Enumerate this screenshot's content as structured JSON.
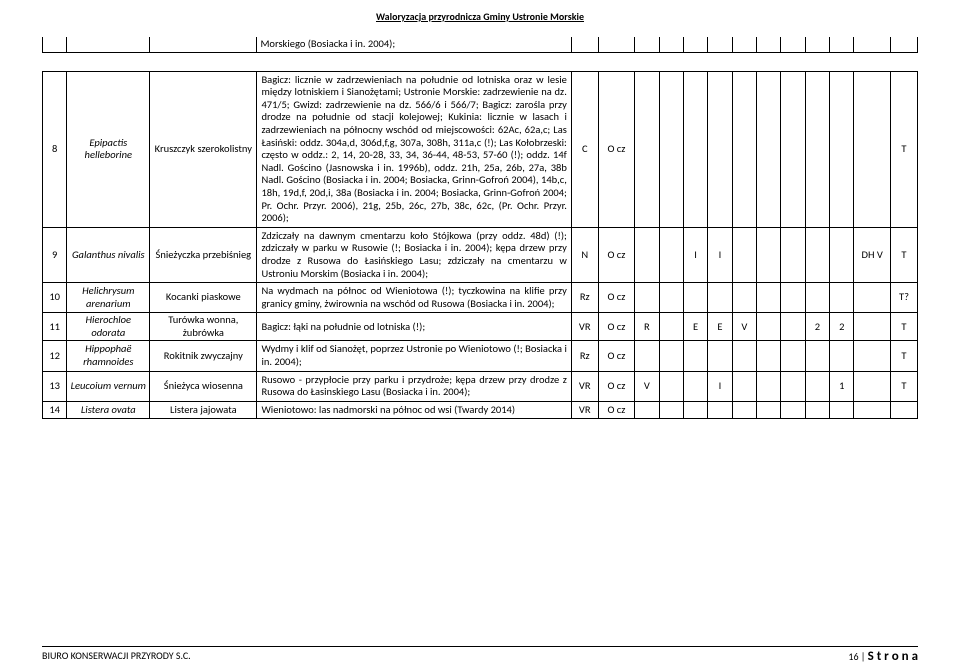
{
  "header": "Waloryzacja przyrodnicza Gminy Ustronie Morskie",
  "footer_left": "BIURO KONSERWACJI PRZYRODY S.C.",
  "footer_right_prefix": "16 | ",
  "footer_right_word": "S t r o n a",
  "top_row_desc": "Morskiego (Bosiacka i in. 2004);",
  "rows": [
    {
      "n": "8",
      "lat": "Epipactis helleborine",
      "pl": "Kruszczyk szerokolistny",
      "desc": "Bagicz: licznie w zadrzewieniach na południe od lotniska oraz w lesie między lotniskiem i Sianożętami; Ustronie Morskie: zadrzewienie na dz. 471/5; Gwizd: zadrzewienie na dz. 566/6 i 566/7; Bagicz: zarośla przy drodze na południe od stacji kolejowej; Kukinia: licznie w lasach i zadrzewieniach na północny wschód od miejscowości: 62Ac, 62a,c; Las Łasiński: oddz. 304a,d, 306d,f,g, 307a, 308h, 311a,c (!); Las Kołobrzeski: często w oddz.: 2, 14, 20-28, 33, 34, 36-44, 48-53, 57-60 (!); oddz. 14f Nadl. Gościno (Jasnowska i in. 1996b), oddz. 21h, 25a, 26b, 27a, 38b Nadl. Gościno (Bosiacka i in. 2004; Bosiacka, Grinn-Gofroń 2004), 14b,c, 18h, 19d,f, 20d,i, 38a (Bosiacka i in. 2004; Bosiacka, Grinn-Gofroń 2004; Pr. Ochr. Przyr. 2006), 21g, 25b, 26c, 27b, 38c, 62c,  (Pr. Ochr. Przyr. 2006);",
      "c": [
        "C",
        "O cz",
        "",
        "",
        "",
        "",
        "",
        "",
        "",
        "",
        "",
        "",
        "T"
      ]
    },
    {
      "n": "9",
      "lat": "Galanthus nivalis",
      "pl": "Śnieżyczka przebiśnieg",
      "desc": "Zdziczały  na dawnym cmentarzu koło Stójkowa (przy oddz. 48d) (!); zdziczały w parku w Rusowie (!; Bosiacka i in. 2004); kępa drzew przy drodze z Rusowa do Łasińskiego Lasu; zdziczały na cmentarzu w Ustroniu Morskim (Bosiacka i in. 2004);",
      "c": [
        "N",
        "O cz",
        "",
        "",
        "I",
        "I",
        "",
        "",
        "",
        "",
        "",
        "DH V",
        "T"
      ]
    },
    {
      "n": "10",
      "lat": "Helichrysum arenarium",
      "pl": "Kocanki piaskowe",
      "desc": "Na wydmach na północ od Wieniotowa (!); tyczkowina na klifie przy granicy gminy, żwirownia na wschód od Rusowa (Bosiacka i in. 2004);",
      "c": [
        "Rz",
        "O cz",
        "",
        "",
        "",
        "",
        "",
        "",
        "",
        "",
        "",
        "",
        "T?"
      ]
    },
    {
      "n": "11",
      "lat": "Hierochloe odorata",
      "pl": "Turówka wonna, żubrówka",
      "desc": "Bagicz: łąki na południe od lotniska (!);",
      "c": [
        "VR",
        "O cz",
        "R",
        "",
        "E",
        "E",
        "V",
        "",
        "",
        "2",
        "2",
        "",
        "T"
      ]
    },
    {
      "n": "12",
      "lat": "Hippophaë rhamnoides",
      "pl": "Rokitnik zwyczajny",
      "desc": "Wydmy i klif od Sianożęt, poprzez Ustronie po Wieniotowo (!; Bosiacka i in. 2004);",
      "c": [
        "Rz",
        "O cz",
        "",
        "",
        "",
        "",
        "",
        "",
        "",
        "",
        "",
        "",
        "T"
      ]
    },
    {
      "n": "13",
      "lat": "Leucoium vernum",
      "pl": "Śnieżyca wiosenna",
      "desc": "Rusowo - przypłocie przy parku i przydroże; kępa drzew przy drodze z Rusowa do Łasinskiego Lasu (Bosiacka i in. 2004);",
      "c": [
        "VR",
        "O cz",
        "V",
        "",
        "",
        "I",
        "",
        "",
        "",
        "",
        "1",
        "",
        "T"
      ]
    },
    {
      "n": "14",
      "lat": "Listera ovata",
      "pl": "Listera jajowata",
      "desc": "Wieniotowo: las nadmorski na północ od wsi (Twardy 2014)",
      "c": [
        "VR",
        "O cz",
        "",
        "",
        "",
        "",
        "",
        "",
        "",
        "",
        "",
        "",
        ""
      ]
    }
  ]
}
